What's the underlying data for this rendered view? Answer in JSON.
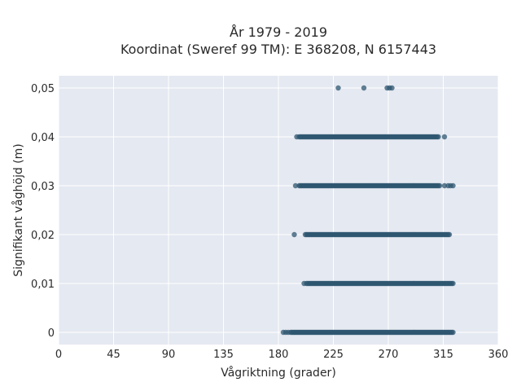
{
  "chart_data": {
    "type": "scatter",
    "title": "År 1979 - 2019",
    "subtitle": "Koordinat (Sweref 99 TM): E 368208, N 6157443",
    "xlabel": "Vågriktning (grader)",
    "ylabel": "Signifikant våghöjd (m)",
    "xlim": [
      0,
      360
    ],
    "ylim": [
      -0.0025,
      0.0525
    ],
    "x_ticks": [
      0,
      45,
      90,
      135,
      180,
      225,
      270,
      315,
      360
    ],
    "x_tick_labels": [
      "0",
      "45",
      "90",
      "135",
      "180",
      "225",
      "270",
      "315",
      "360"
    ],
    "y_ticks": [
      0,
      0.01,
      0.02,
      0.03,
      0.04,
      0.05
    ],
    "y_tick_labels": [
      "0",
      "0,01",
      "0,02",
      "0,03",
      "0,04",
      "0,05"
    ],
    "grid": true,
    "legend": "none",
    "background_color": "#e5e9f1",
    "marker_color": "#2e5570",
    "bands": [
      {
        "y": 0.0,
        "x_dense": [
          191,
          323
        ],
        "x_sparse": [
          184,
          186,
          188,
          190
        ]
      },
      {
        "y": 0.01,
        "x_dense": [
          203,
          323
        ],
        "x_sparse": [
          201
        ]
      },
      {
        "y": 0.02,
        "x_dense": [
          202,
          319
        ],
        "x_sparse": [
          193,
          320
        ]
      },
      {
        "y": 0.03,
        "x_dense": [
          197,
          312
        ],
        "x_sparse": [
          194,
          316,
          319,
          321,
          323
        ]
      },
      {
        "y": 0.04,
        "x_dense": [
          197,
          311
        ],
        "x_sparse": [
          195,
          316
        ]
      },
      {
        "y": 0.05,
        "x_dense": [],
        "x_sparse": [
          229,
          250,
          269,
          271,
          273
        ]
      }
    ]
  }
}
